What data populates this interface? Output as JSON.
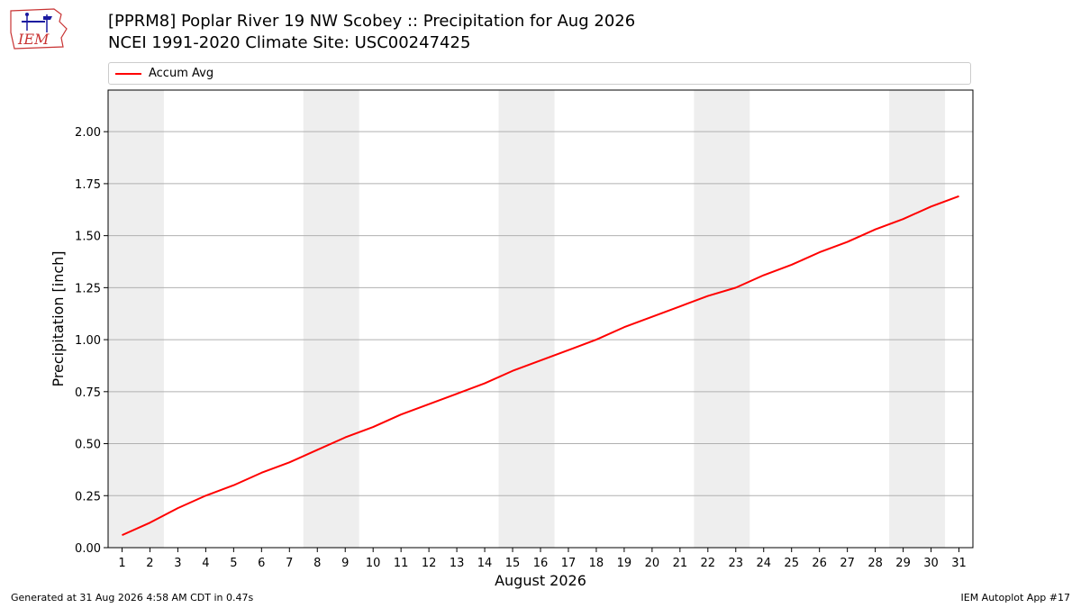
{
  "header": {
    "logo_text": "IEM",
    "title_line1": "[PPRM8] Poplar River 19 NW Scobey :: Precipitation for Aug 2026",
    "title_line2": "NCEI 1991-2020 Climate Site: USC00247425"
  },
  "footer": {
    "generated": "Generated at 31 Aug 2026 4:58 AM CDT in 0.47s",
    "app": "IEM Autoplot App #17"
  },
  "colors": {
    "series": "#ff0000",
    "weekend_band": "#eeeeee",
    "grid": "#b0b0b0"
  },
  "chart_data": {
    "type": "line",
    "xlabel": "August 2026",
    "ylabel": "Precipitation [inch]",
    "xlim": [
      0.5,
      31.5
    ],
    "ylim": [
      0,
      2.2
    ],
    "yticks": [
      0,
      0.25,
      0.5,
      0.75,
      1.0,
      1.25,
      1.5,
      1.75,
      2.0
    ],
    "ytick_labels": [
      "0.00",
      "0.25",
      "0.50",
      "0.75",
      "1.00",
      "1.25",
      "1.50",
      "1.75",
      "2.00"
    ],
    "x": [
      1,
      2,
      3,
      4,
      5,
      6,
      7,
      8,
      9,
      10,
      11,
      12,
      13,
      14,
      15,
      16,
      17,
      18,
      19,
      20,
      21,
      22,
      23,
      24,
      25,
      26,
      27,
      28,
      29,
      30,
      31
    ],
    "xtick_labels": [
      "1",
      "2",
      "3",
      "4",
      "5",
      "6",
      "7",
      "8",
      "9",
      "10",
      "11",
      "12",
      "13",
      "14",
      "15",
      "16",
      "17",
      "18",
      "19",
      "20",
      "21",
      "22",
      "23",
      "24",
      "25",
      "26",
      "27",
      "28",
      "29",
      "30",
      "31"
    ],
    "weekend_day_pairs": [
      [
        1,
        2
      ],
      [
        8,
        9
      ],
      [
        15,
        16
      ],
      [
        22,
        23
      ],
      [
        29,
        30
      ]
    ],
    "grid": "horizontal",
    "legend_position": "top",
    "series": [
      {
        "name": "Accum Avg",
        "values": [
          0.06,
          0.12,
          0.19,
          0.25,
          0.3,
          0.36,
          0.41,
          0.47,
          0.53,
          0.58,
          0.64,
          0.69,
          0.74,
          0.79,
          0.85,
          0.9,
          0.95,
          1.0,
          1.06,
          1.11,
          1.16,
          1.21,
          1.25,
          1.31,
          1.36,
          1.42,
          1.47,
          1.53,
          1.58,
          1.64,
          1.69
        ]
      }
    ]
  }
}
